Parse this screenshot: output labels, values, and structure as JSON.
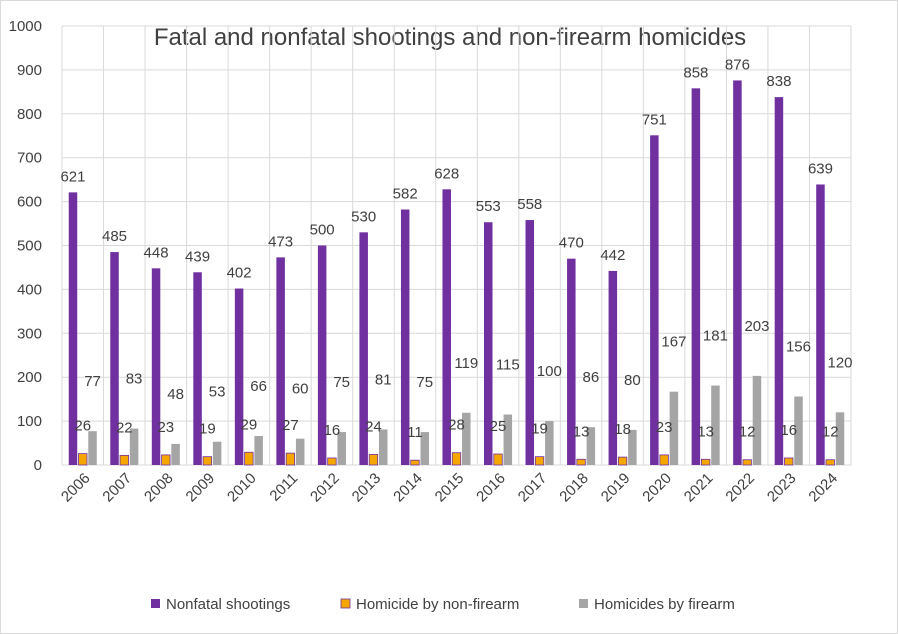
{
  "chart_data": {
    "type": "bar",
    "title": "Fatal and nonfatal shootings and non-firearm homicides",
    "categories": [
      "2006",
      "2007",
      "2008",
      "2009",
      "2010",
      "2011",
      "2012",
      "2013",
      "2014",
      "2015",
      "2016",
      "2017",
      "2018",
      "2019",
      "2020",
      "2021",
      "2022",
      "2023",
      "2024"
    ],
    "series": [
      {
        "name": "Nonfatal shootings",
        "color": "#7030a0",
        "values": [
          621,
          485,
          448,
          439,
          402,
          473,
          500,
          530,
          582,
          628,
          553,
          558,
          470,
          442,
          751,
          858,
          876,
          838,
          639
        ]
      },
      {
        "name": "Homicide by non-firearm",
        "color": "#f5a700",
        "border": "#7030a0",
        "values": [
          26,
          22,
          23,
          19,
          29,
          27,
          16,
          24,
          11,
          28,
          25,
          19,
          13,
          18,
          23,
          13,
          12,
          16,
          12
        ]
      },
      {
        "name": "Homicides by firearm",
        "color": "#a5a5a5",
        "values": [
          77,
          83,
          48,
          53,
          66,
          60,
          75,
          81,
          75,
          119,
          115,
          100,
          86,
          80,
          167,
          181,
          203,
          156,
          120
        ]
      }
    ],
    "ylim": [
      0,
      1000
    ],
    "yticks": [
      0,
      100,
      200,
      300,
      400,
      500,
      600,
      700,
      800,
      900,
      1000
    ],
    "grid": true,
    "legend": "bottom"
  }
}
